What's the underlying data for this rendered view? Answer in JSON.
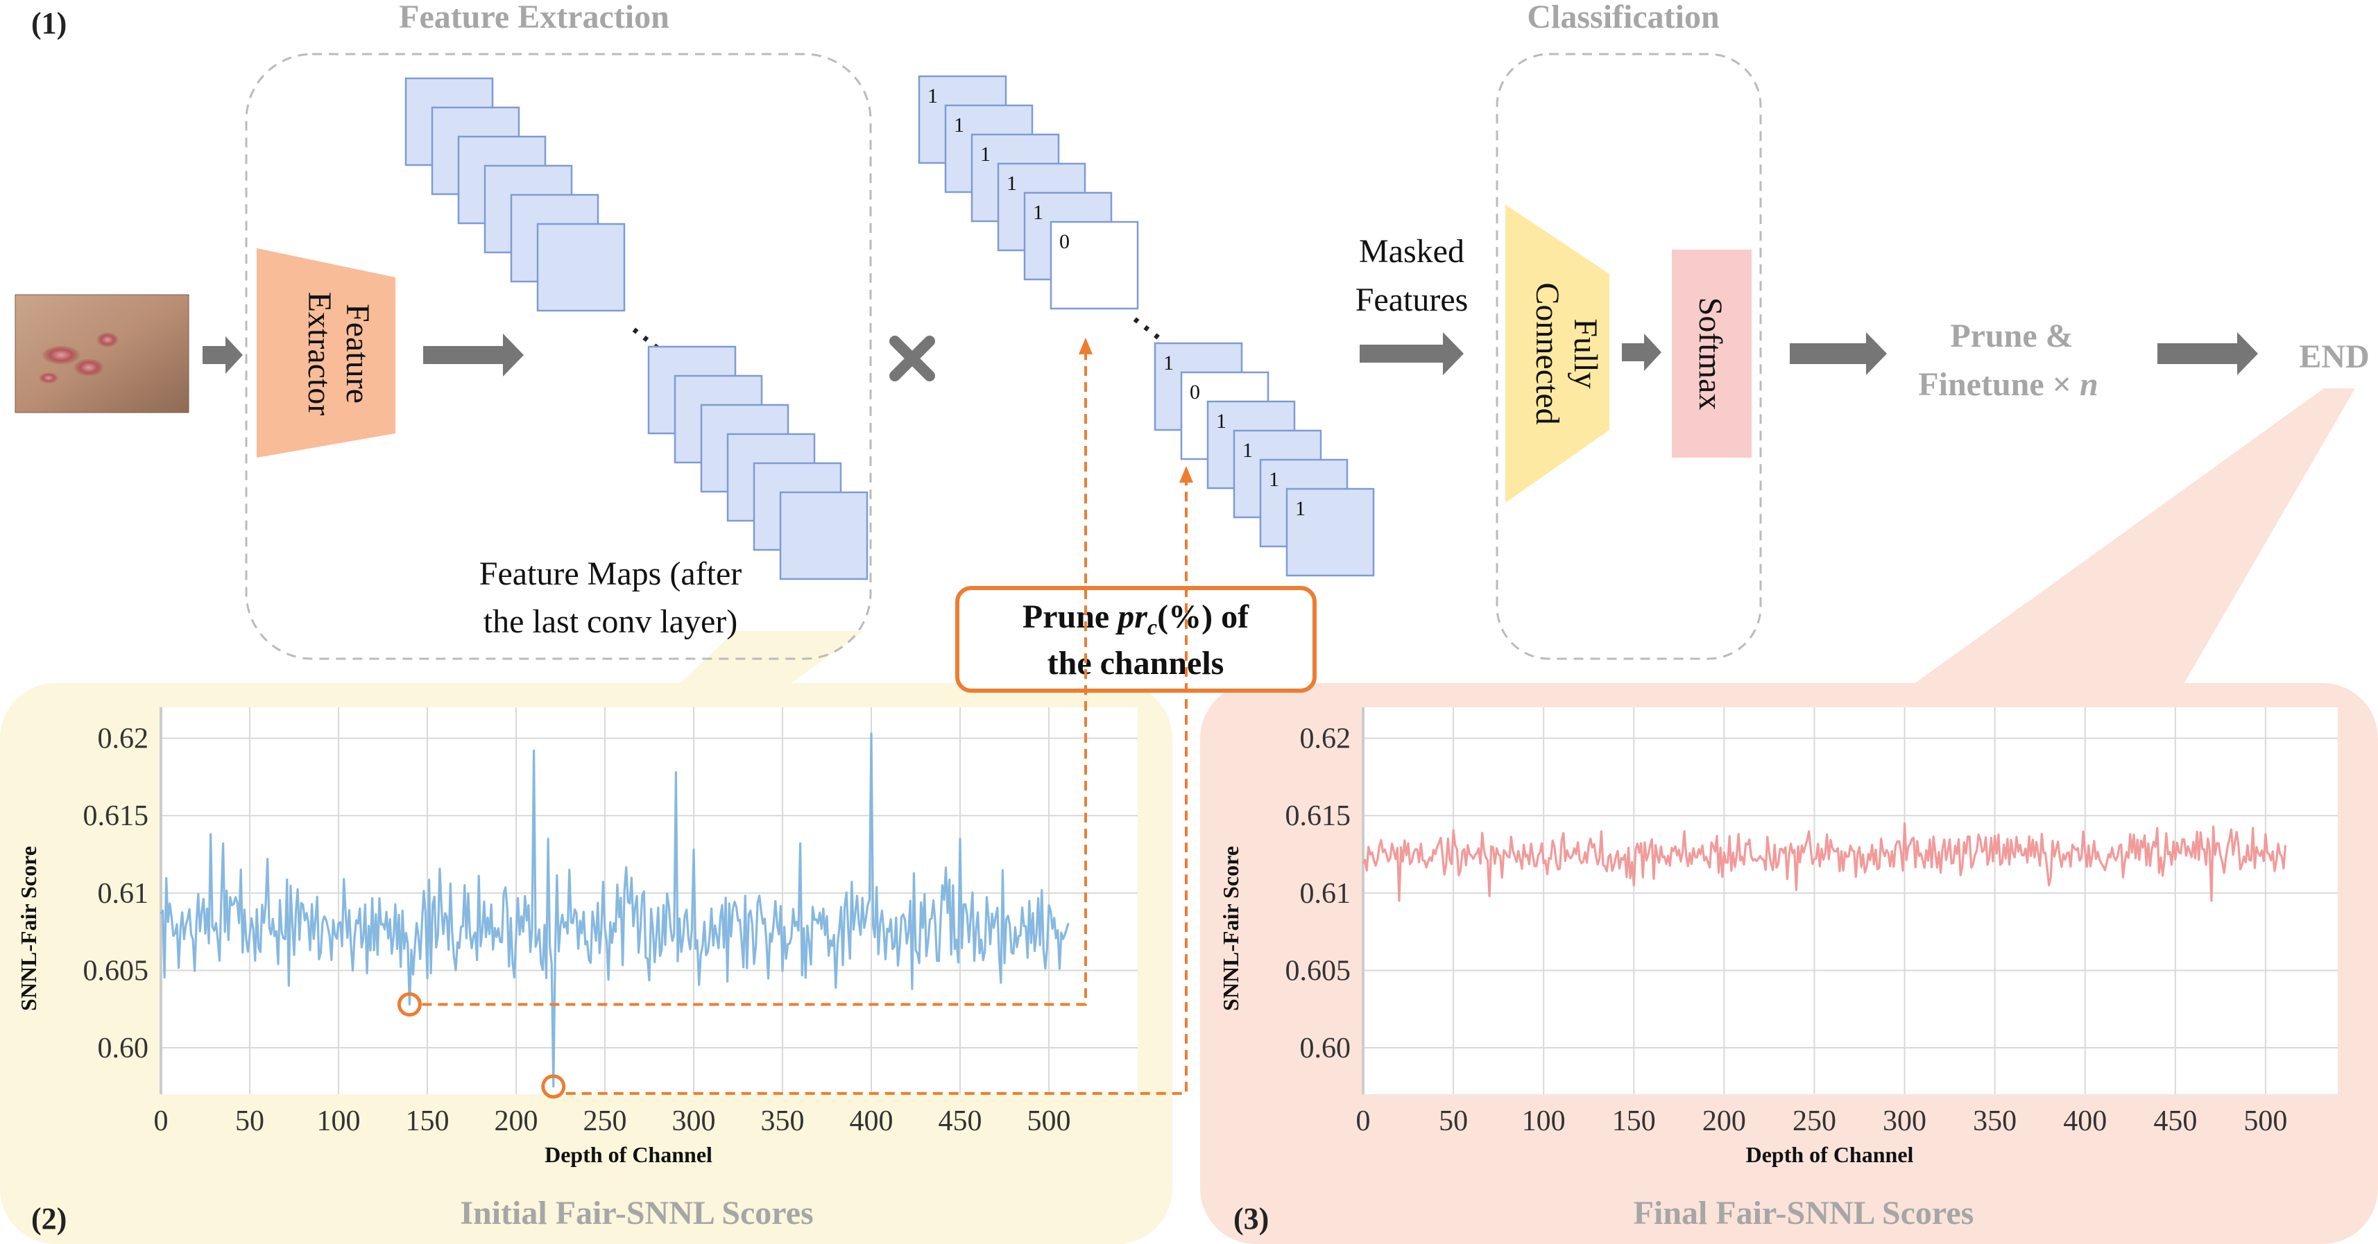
{
  "sections": {
    "panel1_tag": "(1)",
    "panel2_tag": "(2)",
    "panel3_tag": "(3)",
    "feature_extraction": "Feature Extraction",
    "classification": "Classification",
    "initial_scores": "Initial Fair-SNNL Scores",
    "final_scores": "Final Fair-SNNL Scores"
  },
  "blocks": {
    "feature_extractor": [
      "Feature",
      "Extractor"
    ],
    "fully_connected": [
      "Fully",
      "Connected"
    ],
    "softmax": "Softmax",
    "masked_features": [
      "Masked",
      "Features"
    ],
    "feature_maps": [
      "Feature Maps (after",
      "the last conv layer)"
    ],
    "prune_finetune_line1": "Prune &",
    "prune_finetune_line2": "Finetune × ",
    "prune_finetune_n": "n",
    "end": "END",
    "prune_box_prefix": "Prune ",
    "prune_box_var": "pr",
    "prune_box_sub": "c",
    "prune_box_suffix": "(%) of",
    "prune_box_line2": "the channels",
    "ellipsis": "⋯"
  },
  "mask_values_group1": [
    "1",
    "1",
    "1",
    "1",
    "1",
    "0"
  ],
  "mask_values_group2": [
    "1",
    "0",
    "1",
    "1",
    "1",
    "1"
  ],
  "colors": {
    "feature_map_fill": "#d6e1f7",
    "feature_map_stroke": "#7f9bd6",
    "extractor": "#f8bc98",
    "fully_connected": "#fde9a2",
    "softmax": "#f7cccb",
    "arrow": "#767676",
    "prune_orange": "#ed7d31",
    "panel2_bg": "#fbf6dc",
    "panel3_bg": "#fbe3da",
    "initial_line": "#86b8e0",
    "final_line": "#f29a9a"
  },
  "chart_data": [
    {
      "type": "line",
      "title": "Initial Fair-SNNL Scores",
      "xlabel": "Depth of Channel",
      "ylabel": "SNNL-Fair Score",
      "xlim": [
        0,
        550
      ],
      "ylim": [
        0.597,
        0.622
      ],
      "xticks": [
        "0",
        "50",
        "100",
        "150",
        "200",
        "250",
        "300",
        "350",
        "400",
        "450",
        "500"
      ],
      "yticks": [
        "0.60",
        "0.605",
        "0.61",
        "0.615",
        "0.62"
      ],
      "grid": true,
      "series": [
        {
          "mean": 0.6078,
          "noise": 0.0016,
          "points": 512,
          "spikes": [
            [
              28,
              0.6138
            ],
            [
              35,
              0.6132
            ],
            [
              45,
              0.6115
            ],
            [
              60,
              0.6122
            ],
            [
              140,
              0.6028
            ],
            [
              150,
              0.6045
            ],
            [
              205,
              0.6098
            ],
            [
              210,
              0.6192
            ],
            [
              218,
              0.6135
            ],
            [
              221,
              0.5975
            ],
            [
              230,
              0.6115
            ],
            [
              290,
              0.6178
            ],
            [
              300,
              0.6128
            ],
            [
              360,
              0.6132
            ],
            [
              375,
              0.6085
            ],
            [
              400,
              0.6203
            ],
            [
              450,
              0.6135
            ],
            [
              500,
              0.6092
            ]
          ]
        }
      ],
      "highlighted_points": [
        [
          140,
          0.6028
        ],
        [
          221,
          0.5975
        ]
      ]
    },
    {
      "type": "line",
      "title": "Final Fair-SNNL Scores",
      "xlabel": "Depth of Channel",
      "ylabel": "SNNL-Fair Score",
      "xlim": [
        0,
        540
      ],
      "ylim": [
        0.597,
        0.622
      ],
      "xticks": [
        "0",
        "50",
        "100",
        "150",
        "200",
        "250",
        "300",
        "350",
        "400",
        "450",
        "500"
      ],
      "yticks": [
        "0.60",
        "0.605",
        "0.61",
        "0.615",
        "0.62"
      ],
      "grid": true,
      "series": [
        {
          "mean": 0.6125,
          "noise": 0.0007,
          "points": 512,
          "spikes": [
            [
              20,
              0.6095
            ],
            [
              70,
              0.6098
            ],
            [
              150,
              0.6105
            ],
            [
              240,
              0.6102
            ],
            [
              300,
              0.6145
            ],
            [
              380,
              0.6105
            ],
            [
              440,
              0.6142
            ],
            [
              470,
              0.6095
            ],
            [
              500,
              0.6138
            ]
          ]
        }
      ]
    }
  ]
}
